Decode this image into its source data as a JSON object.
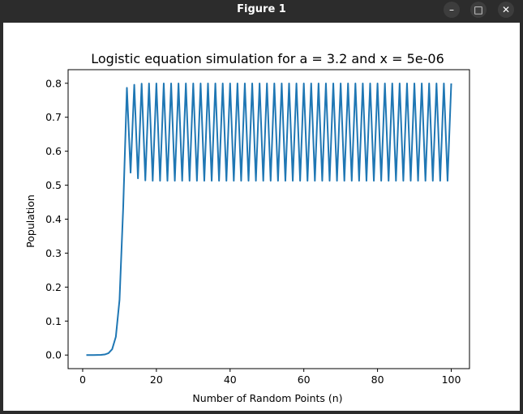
{
  "window": {
    "title": "Figure 1",
    "buttons": {
      "minimize_icon": "–",
      "maximize_icon": "□",
      "close_icon": "✕"
    }
  },
  "colors": {
    "line": "#1f77b4",
    "axes": "#000000",
    "background": "#ffffff"
  },
  "chart_data": {
    "type": "line",
    "title": "Logistic equation simulation for a = 3.2 and x = 5e-06",
    "xlabel": "Number of Random Points (n)",
    "ylabel": "Population",
    "xlim": [
      -3.95,
      104.95
    ],
    "ylim": [
      -0.04,
      0.84
    ],
    "xticks": [
      0,
      20,
      40,
      60,
      80,
      100
    ],
    "yticks": [
      0.0,
      0.1,
      0.2,
      0.3,
      0.4,
      0.5,
      0.6,
      0.7,
      0.8
    ],
    "yticklabels": [
      "0.0",
      "0.1",
      "0.2",
      "0.3",
      "0.4",
      "0.5",
      "0.6",
      "0.7",
      "0.8"
    ],
    "grid": false,
    "series": [
      {
        "x": [
          1,
          2,
          3,
          4,
          5,
          6,
          7,
          8,
          9,
          10,
          11,
          12,
          13,
          14,
          15,
          16,
          17,
          18,
          19,
          20,
          21,
          22,
          23,
          24,
          25,
          26,
          27,
          28,
          29,
          30,
          31,
          32,
          33,
          34,
          35,
          36,
          37,
          38,
          39,
          40,
          41,
          42,
          43,
          44,
          45,
          46,
          47,
          48,
          49,
          50,
          51,
          52,
          53,
          54,
          55,
          56,
          57,
          58,
          59,
          60,
          61,
          62,
          63,
          64,
          65,
          66,
          67,
          68,
          69,
          70,
          71,
          72,
          73,
          74,
          75,
          76,
          77,
          78,
          79,
          80,
          81,
          82,
          83,
          84,
          85,
          86,
          87,
          88,
          89,
          90,
          91,
          92,
          93,
          94,
          95,
          96,
          97,
          98,
          99,
          100
        ],
        "y": [
          5e-06,
          1.6e-05,
          5.1e-05,
          0.000164,
          0.000524,
          0.001676,
          0.005354,
          0.01705,
          0.05363,
          0.1624,
          0.4354,
          0.7866,
          0.537,
          0.7957,
          0.5202,
          0.799,
          0.5141,
          0.7994,
          0.5131,
          0.7995,
          0.513,
          0.7995,
          0.513,
          0.7995,
          0.513,
          0.7995,
          0.513,
          0.7995,
          0.513,
          0.7995,
          0.513,
          0.7995,
          0.513,
          0.7995,
          0.513,
          0.7995,
          0.513,
          0.7995,
          0.513,
          0.7995,
          0.513,
          0.7995,
          0.513,
          0.7995,
          0.513,
          0.7995,
          0.513,
          0.7995,
          0.513,
          0.7995,
          0.513,
          0.7995,
          0.513,
          0.7995,
          0.513,
          0.7995,
          0.513,
          0.7995,
          0.513,
          0.7995,
          0.513,
          0.7995,
          0.513,
          0.7995,
          0.513,
          0.7995,
          0.513,
          0.7995,
          0.513,
          0.7995,
          0.513,
          0.7995,
          0.513,
          0.7995,
          0.513,
          0.7995,
          0.513,
          0.7995,
          0.513,
          0.7995,
          0.513,
          0.7995,
          0.513,
          0.7995,
          0.513,
          0.7995,
          0.513,
          0.7995,
          0.513,
          0.7995,
          0.513,
          0.7995,
          0.513,
          0.7995,
          0.513,
          0.7995,
          0.513,
          0.7995,
          0.513,
          0.7995
        ]
      }
    ]
  }
}
